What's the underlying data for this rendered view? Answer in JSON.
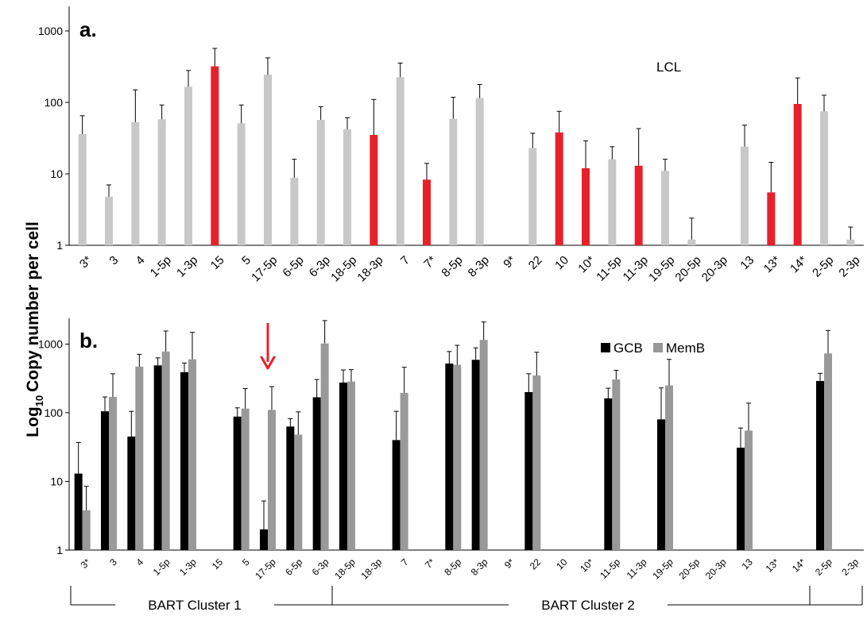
{
  "y_axis_label_main": "Copy number per cell",
  "y_axis_label_prefix": "Log",
  "y_axis_label_sub": "10",
  "colors": {
    "gray": "#c8c8c8",
    "red": "#e8202a",
    "black": "#000000",
    "memb": "#999999",
    "arrow": "#e8202a"
  },
  "clusters": [
    {
      "label": "BART Cluster 1",
      "from": 0,
      "to": 9
    },
    {
      "label": "BART Cluster 2",
      "from": 10,
      "to": 30
    }
  ],
  "chart_data": [
    {
      "type": "bar",
      "panel_label": "a.",
      "annotation": "LCL",
      "scale": "log10",
      "ylim": [
        1,
        1000
      ],
      "yticks": [
        "1",
        "10",
        "100",
        "1000"
      ],
      "grid": false,
      "categories": [
        "3*",
        "3",
        "4",
        "1-5p",
        "1-3p",
        "15",
        "5",
        "17-5p",
        "6-5p",
        "6-3p",
        "18-5p",
        "18-3p",
        "7",
        "7*",
        "8-5p",
        "8-3p",
        "9*",
        "22",
        "10",
        "10*",
        "11-5p",
        "11-3p",
        "19-5p",
        "20-5p",
        "20-3p",
        "13",
        "13*",
        "14*",
        "2-5p",
        "2-3p"
      ],
      "values": [
        36,
        4.8,
        53,
        58,
        165,
        320,
        51,
        245,
        8.8,
        57,
        42,
        35,
        225,
        8.3,
        59,
        115,
        null,
        23,
        38,
        12,
        16,
        13,
        11,
        1.2,
        null,
        24,
        5.5,
        95,
        75,
        1.2
      ],
      "errors": [
        65,
        7,
        150,
        92,
        280,
        570,
        92,
        420,
        16,
        87,
        61,
        110,
        355,
        14,
        118,
        178,
        null,
        37,
        75,
        29,
        24,
        43,
        16,
        2.4,
        null,
        48,
        14.5,
        220,
        126,
        1.8
      ],
      "highlight": [
        false,
        false,
        false,
        false,
        false,
        true,
        false,
        false,
        false,
        false,
        false,
        true,
        false,
        true,
        false,
        false,
        false,
        false,
        true,
        true,
        false,
        true,
        false,
        false,
        false,
        false,
        true,
        true,
        false,
        false
      ]
    },
    {
      "type": "bar",
      "panel_label": "b.",
      "scale": "log10",
      "ylim": [
        1,
        2500
      ],
      "yticks": [
        "1",
        "10",
        "100",
        "1000"
      ],
      "grid": false,
      "legend_position": "top-right",
      "categories": [
        "3*",
        "3",
        "4",
        "1-5p",
        "1-3p",
        "15",
        "5",
        "17-5p",
        "6-5p",
        "6-3p",
        "18-5p",
        "18-3p",
        "7",
        "7*",
        "8-5p",
        "8-3p",
        "9*",
        "22",
        "10",
        "10*",
        "11-5p",
        "11-3p",
        "19-5p",
        "20-5p",
        "20-3p",
        "13",
        "13*",
        "14*",
        "2-5p",
        "2-3p"
      ],
      "series": [
        {
          "name": "GCB",
          "values": [
            13,
            105,
            45,
            490,
            390,
            null,
            88,
            2,
            63,
            168,
            275,
            null,
            40,
            null,
            520,
            590,
            null,
            200,
            null,
            null,
            162,
            null,
            80,
            null,
            null,
            31,
            null,
            null,
            290,
            null
          ],
          "errors": [
            37,
            170,
            105,
            630,
            530,
            null,
            118,
            5.2,
            82,
            305,
            420,
            null,
            105,
            null,
            780,
            880,
            null,
            370,
            null,
            null,
            228,
            null,
            230,
            null,
            null,
            60,
            null,
            null,
            375,
            null
          ]
        },
        {
          "name": "MemB",
          "values": [
            3.8,
            170,
            470,
            780,
            600,
            null,
            115,
            110,
            48,
            1020,
            285,
            null,
            195,
            null,
            500,
            1150,
            null,
            350,
            null,
            null,
            305,
            null,
            250,
            null,
            null,
            55,
            null,
            null,
            730,
            null
          ],
          "errors": [
            8.5,
            370,
            710,
            1550,
            1480,
            null,
            225,
            240,
            103,
            2200,
            425,
            null,
            460,
            null,
            960,
            2100,
            null,
            760,
            null,
            null,
            415,
            null,
            600,
            null,
            null,
            138,
            null,
            null,
            1580,
            null
          ]
        }
      ],
      "arrow_at_category": "17-5p"
    }
  ]
}
